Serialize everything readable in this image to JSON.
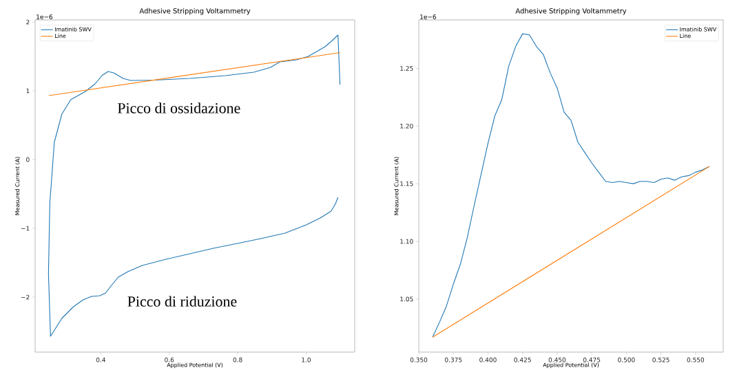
{
  "chart_data": [
    {
      "type": "line",
      "title": "Adhesive Stripping Voltammetry",
      "xlabel": "Applied Potential (V)",
      "ylabel": "Measured Current (A)",
      "xlim": [
        0.208,
        1.142
      ],
      "ylim": [
        -2.8,
        2.03
      ],
      "xticks": [
        {
          "value": 0.4,
          "label": "0.4"
        },
        {
          "value": 0.6,
          "label": "0.6"
        },
        {
          "value": 0.8,
          "label": "0.8"
        },
        {
          "value": 1.0,
          "label": "1.0"
        }
      ],
      "yticks": [
        {
          "value": -2,
          "label": "−2"
        },
        {
          "value": -1,
          "label": "−1"
        },
        {
          "value": 0,
          "label": "0"
        },
        {
          "value": 1,
          "label": "1"
        },
        {
          "value": 2,
          "label": "2"
        }
      ],
      "legend": "top left",
      "annotations": [
        "1e−6",
        "Picco di ossidazione",
        "Picco di riduzione"
      ],
      "series": [
        {
          "name": "Imatinib SWV",
          "color": "#1f77b4",
          "x": [
            1.093,
            1.086,
            1.073,
            1.041,
            1.0,
            0.938,
            0.867,
            0.799,
            0.729,
            0.66,
            0.59,
            0.521,
            0.479,
            0.451,
            0.431,
            0.414,
            0.397,
            0.373,
            0.348,
            0.32,
            0.286,
            0.253,
            0.247,
            0.251,
            0.255,
            0.264,
            0.286,
            0.312,
            0.355,
            0.383,
            0.403,
            0.421,
            0.438,
            0.465,
            0.487,
            0.556,
            0.66,
            0.764,
            0.847,
            0.896,
            0.923,
            0.972,
            1.006,
            1.034,
            1.055,
            1.076,
            1.093,
            1.099
          ],
          "values": [
            -0.55,
            -0.64,
            -0.75,
            -0.85,
            -0.95,
            -1.07,
            -1.15,
            -1.22,
            -1.29,
            -1.37,
            -1.45,
            -1.54,
            -1.63,
            -1.71,
            -1.83,
            -1.94,
            -1.98,
            -1.99,
            -2.04,
            -2.14,
            -2.31,
            -2.57,
            -1.66,
            -0.62,
            -0.37,
            0.25,
            0.66,
            0.87,
            0.99,
            1.1,
            1.22,
            1.28,
            1.26,
            1.18,
            1.15,
            1.155,
            1.18,
            1.22,
            1.27,
            1.34,
            1.42,
            1.45,
            1.5,
            1.58,
            1.64,
            1.73,
            1.81,
            1.09
          ]
        },
        {
          "name": "Line",
          "color": "#ff7f0e",
          "x": [
            0.248,
            1.099
          ],
          "values": [
            0.93,
            1.555
          ]
        }
      ]
    },
    {
      "type": "line",
      "title": "Adhesive Stripping Voltammetry",
      "xlabel": "Applied Potential (V)",
      "ylabel": "Measured Current (A)",
      "xlim": [
        0.35,
        0.57
      ],
      "ylim": [
        1.004,
        1.292
      ],
      "xticks": [
        {
          "value": 0.35,
          "label": "0.350"
        },
        {
          "value": 0.375,
          "label": "0.375"
        },
        {
          "value": 0.4,
          "label": "0.400"
        },
        {
          "value": 0.425,
          "label": "0.425"
        },
        {
          "value": 0.45,
          "label": "0.450"
        },
        {
          "value": 0.475,
          "label": "0.475"
        },
        {
          "value": 0.5,
          "label": "0.500"
        },
        {
          "value": 0.525,
          "label": "0.525"
        },
        {
          "value": 0.55,
          "label": "0.550"
        }
      ],
      "yticks": [
        {
          "value": 1.05,
          "label": "1.05"
        },
        {
          "value": 1.1,
          "label": "1.10"
        },
        {
          "value": 1.15,
          "label": "1.15"
        },
        {
          "value": 1.2,
          "label": "1.20"
        },
        {
          "value": 1.25,
          "label": "1.25"
        }
      ],
      "legend": "top right",
      "annotations": [
        "1e−6"
      ],
      "series": [
        {
          "name": "Imatinib SWV",
          "color": "#1f77b4",
          "x": [
            0.36,
            0.365,
            0.37,
            0.375,
            0.38,
            0.385,
            0.39,
            0.395,
            0.4,
            0.405,
            0.41,
            0.415,
            0.42,
            0.425,
            0.43,
            0.435,
            0.44,
            0.445,
            0.45,
            0.455,
            0.46,
            0.465,
            0.47,
            0.475,
            0.48,
            0.485,
            0.49,
            0.495,
            0.5,
            0.505,
            0.51,
            0.515,
            0.52,
            0.525,
            0.53,
            0.535,
            0.54,
            0.545,
            0.55,
            0.555,
            0.56
          ],
          "values": [
            1.017,
            1.03,
            1.044,
            1.063,
            1.08,
            1.103,
            1.131,
            1.158,
            1.185,
            1.209,
            1.223,
            1.252,
            1.269,
            1.28,
            1.279,
            1.269,
            1.262,
            1.246,
            1.233,
            1.212,
            1.205,
            1.186,
            1.177,
            1.168,
            1.16,
            1.152,
            1.151,
            1.152,
            1.151,
            1.15,
            1.152,
            1.152,
            1.151,
            1.154,
            1.155,
            1.153,
            1.156,
            1.157,
            1.16,
            1.162,
            1.165
          ]
        },
        {
          "name": "Line",
          "color": "#ff7f0e",
          "x": [
            0.36,
            0.56
          ],
          "values": [
            1.017,
            1.165
          ]
        }
      ]
    }
  ]
}
